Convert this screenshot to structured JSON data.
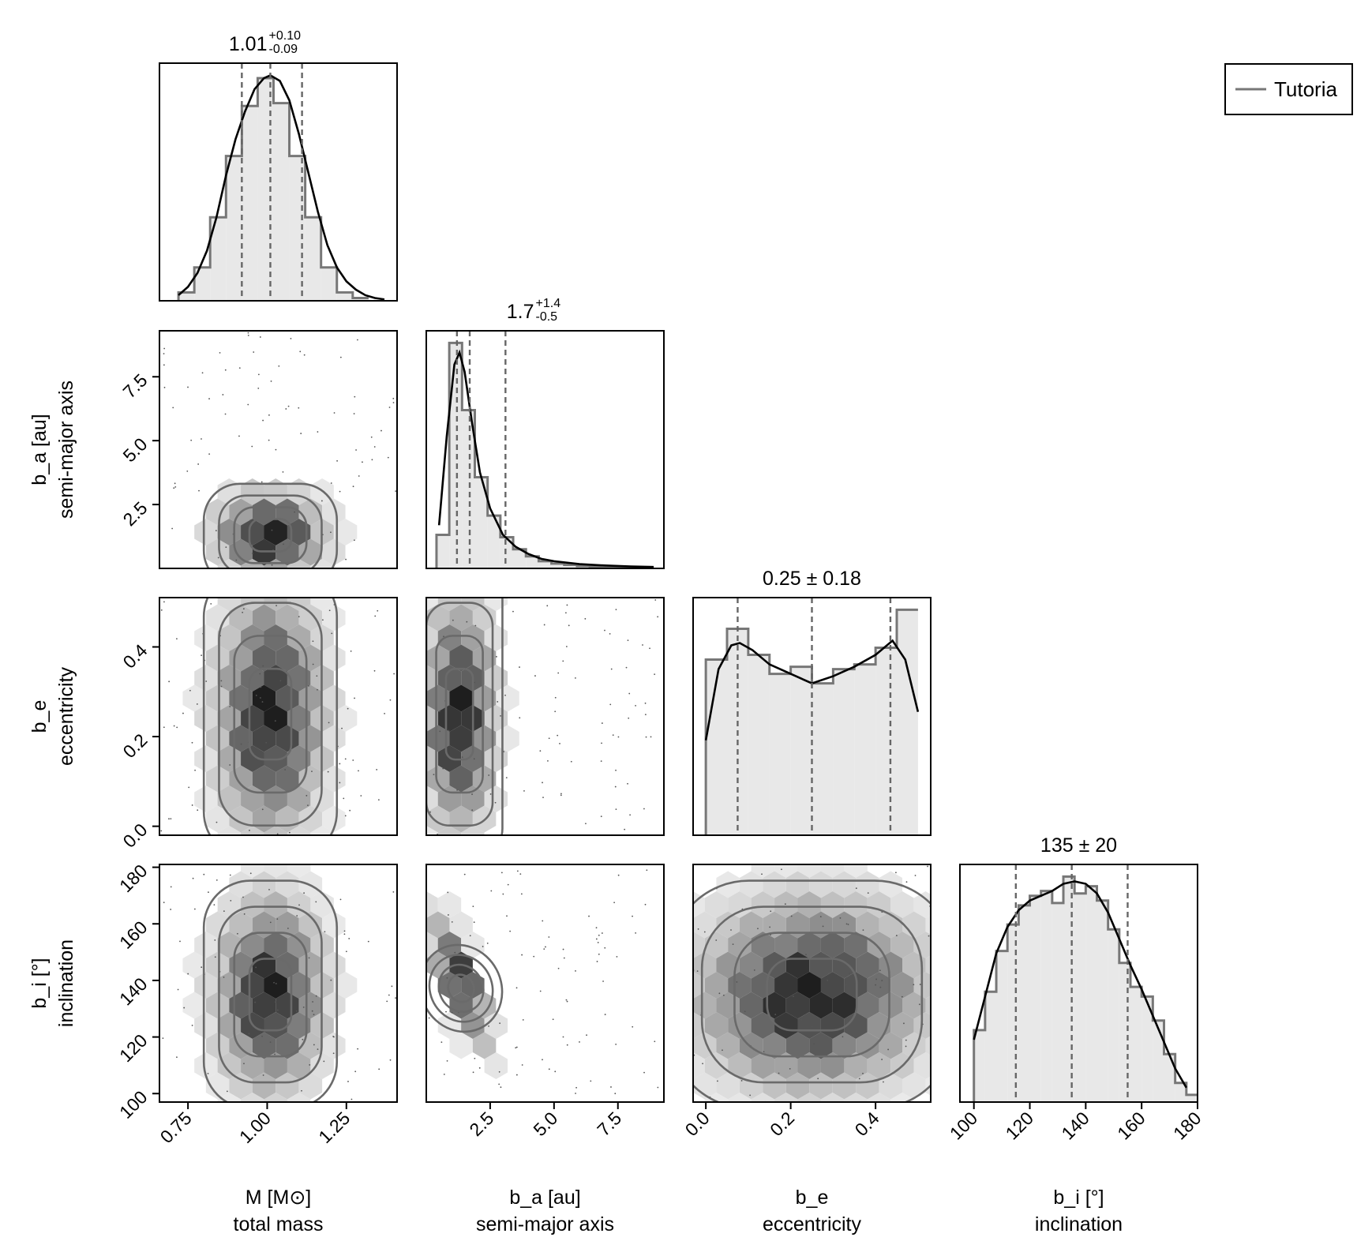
{
  "figure": {
    "type": "corner-plot"
  },
  "legend": {
    "label": "Tutoria",
    "placement": "top-right"
  },
  "colors": {
    "axis": "#000000",
    "hist_fill": "#e8e8e8",
    "hist_step": "#777777",
    "kde": "#000000",
    "quantile": "#666666",
    "contour": "#6a6a6a",
    "hexbin_dark": "#1e1e1e"
  },
  "chart_data": [
    {
      "type": "histogram",
      "id": "M",
      "row": 0,
      "col": 0,
      "param": "M",
      "label_line1": "M [M⊙]",
      "label_line2": "total mass",
      "title_main": "1.01",
      "title_sup": "+0.10",
      "title_sub": "-0.09",
      "xlim": [
        0.66,
        1.41
      ],
      "bin_edges": [
        0.72,
        0.77,
        0.82,
        0.87,
        0.92,
        0.97,
        1.02,
        1.07,
        1.12,
        1.17,
        1.22,
        1.27,
        1.32
      ],
      "counts": [
        3,
        12,
        30,
        52,
        70,
        80,
        71,
        52,
        30,
        12,
        3,
        1
      ],
      "kde_x": [
        0.72,
        0.75,
        0.78,
        0.81,
        0.84,
        0.87,
        0.9,
        0.93,
        0.96,
        0.99,
        1.01,
        1.04,
        1.07,
        1.1,
        1.13,
        1.16,
        1.19,
        1.22,
        1.25,
        1.28,
        1.31,
        1.34,
        1.37
      ],
      "kde_y": [
        2,
        5,
        10,
        18,
        30,
        45,
        58,
        68,
        76,
        80,
        81,
        79,
        72,
        60,
        46,
        32,
        20,
        12,
        7,
        4,
        2,
        1,
        0.5
      ],
      "quantiles": [
        0.92,
        1.01,
        1.11
      ]
    },
    {
      "type": "histogram",
      "id": "a",
      "row": 1,
      "col": 1,
      "param": "b_a",
      "label_line1": "b_a [au]",
      "label_line2": "semi-major axis",
      "title_main": "1.7",
      "title_sup": "+1.4",
      "title_sub": "-0.5",
      "xlim": [
        0.0,
        9.3
      ],
      "ticks": [
        2.5,
        5.0,
        7.5
      ],
      "tick_labels": [
        "2.5",
        "5.0",
        "7.5"
      ],
      "bin_edges": [
        0.4,
        0.9,
        1.4,
        1.9,
        2.4,
        2.9,
        3.4,
        3.9,
        4.4,
        4.9,
        5.4,
        5.9,
        6.4,
        6.9,
        7.4,
        7.9,
        8.4,
        8.9
      ],
      "counts": [
        14,
        94,
        66,
        38,
        22,
        13,
        8,
        5,
        3,
        2,
        1.5,
        1,
        0.8,
        0.6,
        0.5,
        0.4,
        0.3
      ],
      "kde_x": [
        0.5,
        0.8,
        1.1,
        1.3,
        1.5,
        1.8,
        2.1,
        2.5,
        3.0,
        3.5,
        4.0,
        4.5,
        5.0,
        6.0,
        7.0,
        8.0,
        8.9
      ],
      "kde_y": [
        18,
        55,
        85,
        90,
        82,
        60,
        40,
        25,
        14,
        9,
        6,
        4,
        3,
        1.8,
        1.2,
        0.8,
        0.6
      ],
      "quantiles": [
        1.2,
        1.7,
        3.1
      ]
    },
    {
      "type": "histogram",
      "id": "e",
      "row": 2,
      "col": 2,
      "param": "b_e",
      "label_line1": "b_e",
      "label_line2": "eccentricity",
      "title_main": "0.25 ± 0.18",
      "xlim": [
        -0.03,
        0.53
      ],
      "ticks": [
        0.0,
        0.2,
        0.4
      ],
      "tick_labels": [
        "0.0",
        "0.2",
        "0.4"
      ],
      "bin_edges": [
        0.0,
        0.05,
        0.1,
        0.15,
        0.2,
        0.25,
        0.3,
        0.35,
        0.4,
        0.45,
        0.5
      ],
      "counts": [
        74,
        87,
        76,
        68,
        71,
        64,
        70,
        72,
        79,
        95
      ],
      "kde_x": [
        0.0,
        0.03,
        0.06,
        0.08,
        0.11,
        0.15,
        0.2,
        0.25,
        0.3,
        0.35,
        0.4,
        0.44,
        0.47,
        0.5
      ],
      "kde_y": [
        40,
        70,
        80,
        81,
        78,
        72,
        68,
        64,
        67,
        71,
        76,
        82,
        74,
        52
      ],
      "quantiles": [
        0.075,
        0.25,
        0.435
      ]
    },
    {
      "type": "histogram",
      "id": "i",
      "row": 3,
      "col": 3,
      "param": "b_i",
      "label_line1": "b_i [°]",
      "label_line2": "inclination",
      "title_main": "135 ± 20",
      "xlim": [
        95,
        180
      ],
      "ticks": [
        100,
        120,
        140,
        160,
        180
      ],
      "tick_labels": [
        "100",
        "120",
        "140",
        "160",
        "180"
      ],
      "bin_edges": [
        100,
        104,
        108,
        112,
        116,
        120,
        124,
        128,
        132,
        136,
        140,
        144,
        148,
        152,
        156,
        160,
        164,
        168,
        172,
        176,
        180
      ],
      "counts": [
        30,
        46,
        63,
        74,
        82,
        86,
        88,
        83,
        94,
        87,
        90,
        84,
        72,
        58,
        48,
        44,
        34,
        20,
        8,
        3
      ],
      "kde_x": [
        100,
        104,
        108,
        112,
        116,
        120,
        124,
        128,
        132,
        136,
        140,
        144,
        148,
        152,
        156,
        160,
        164,
        168,
        172,
        176
      ],
      "kde_y": [
        26,
        44,
        62,
        73,
        80,
        84,
        86,
        88,
        91,
        92,
        91,
        87,
        79,
        68,
        57,
        47,
        36,
        25,
        14,
        6
      ],
      "quantiles": [
        115,
        135,
        155
      ]
    },
    {
      "type": "hexbin-contour",
      "row": 1,
      "col": 0,
      "xlim": [
        0.66,
        1.41
      ],
      "ylim": [
        0.0,
        9.3
      ],
      "xticks": [
        0.75,
        1.0,
        1.25
      ],
      "yticks": [
        2.5,
        5.0,
        7.5
      ],
      "ytick_labels": [
        "2.5",
        "5.0",
        "7.5"
      ],
      "ylabel_line1": "b_a [au]",
      "ylabel_line2": "semi-major axis",
      "mean": [
        1.01,
        1.3
      ],
      "sigma": [
        0.1,
        1.0
      ],
      "density_peak": [
        1.01,
        1.2
      ],
      "contour_levels": [
        [
          0.13,
          0.55,
          0.6
        ],
        [
          0.22,
          1.0,
          1.1
        ],
        [
          0.3,
          1.6,
          2.4
        ],
        [
          0.38,
          2.6,
          4.0
        ]
      ]
    },
    {
      "type": "hexbin-contour",
      "row": 2,
      "col": 0,
      "xlim": [
        0.66,
        1.41
      ],
      "ylim": [
        -0.02,
        0.51
      ],
      "xticks": [
        0.75,
        1.0,
        1.25
      ],
      "yticks": [
        0.0,
        0.2,
        0.4
      ],
      "ytick_labels": [
        "0.0",
        "0.2",
        "0.4"
      ],
      "ylabel_line1": "b_e",
      "ylabel_line2": "eccentricity",
      "mean": [
        1.01,
        0.25
      ],
      "sigma": [
        0.1,
        0.16
      ],
      "contour_levels": [
        [
          0.2,
          0.23,
          0.25
        ],
        [
          0.23,
          0.25,
          0.26
        ],
        [
          0.29,
          0.27,
          0.28
        ]
      ]
    },
    {
      "type": "hexbin-contour",
      "row": 2,
      "col": 1,
      "xlim": [
        0.0,
        9.3
      ],
      "ylim": [
        -0.02,
        0.51
      ],
      "xticks": [
        2.5,
        5.0,
        7.5
      ],
      "yticks": [
        0.0,
        0.2,
        0.4
      ],
      "mean": [
        1.3,
        0.25
      ],
      "sigma": [
        0.8,
        0.16
      ],
      "contour_levels": [
        [
          0.5,
          0.24,
          0.25
        ],
        [
          0.8,
          0.25,
          0.26
        ],
        [
          1.4,
          0.26,
          0.27
        ]
      ]
    },
    {
      "type": "hexbin-contour",
      "row": 3,
      "col": 0,
      "xlim": [
        0.66,
        1.41
      ],
      "ylim": [
        97,
        181
      ],
      "xticks": [
        0.75,
        1.0,
        1.25
      ],
      "yticks": [
        100,
        120,
        140,
        160,
        180
      ],
      "xtick_labels": [
        "0.75",
        "1.00",
        "1.25"
      ],
      "ytick_labels": [
        "100",
        "120",
        "140",
        "160",
        "180"
      ],
      "ylabel_line1": "b_i [°]",
      "ylabel_line2": "inclination",
      "mean": [
        1.01,
        135
      ],
      "sigma": [
        0.1,
        20
      ],
      "contour_levels": [
        [
          0.08,
          15,
          21
        ],
        [
          0.17,
          31,
          37
        ],
        [
          0.23,
          40,
          42
        ],
        [
          0.3,
          45,
          46
        ]
      ]
    },
    {
      "type": "hexbin-contour",
      "row": 3,
      "col": 1,
      "xlim": [
        0.0,
        9.3
      ],
      "ylim": [
        97,
        181
      ],
      "xticks": [
        2.5,
        5.0,
        7.5
      ],
      "yticks": [
        100,
        120,
        140,
        160,
        180
      ],
      "xtick_labels": [
        "2.5",
        "5.0",
        "7.5"
      ],
      "mean": [
        1.3,
        140
      ],
      "sigma": [
        0.9,
        18
      ],
      "correlation": "negative",
      "contour_levels": [
        [
          0.5,
          12
        ],
        [
          0.9,
          22
        ],
        [
          1.3,
          30
        ]
      ]
    },
    {
      "type": "hexbin-contour",
      "row": 3,
      "col": 2,
      "xlim": [
        -0.03,
        0.53
      ],
      "ylim": [
        97,
        181
      ],
      "xticks": [
        0.0,
        0.2,
        0.4
      ],
      "yticks": [
        100,
        120,
        140,
        160,
        180
      ],
      "xtick_labels": [
        "0.0",
        "0.2",
        "0.4"
      ],
      "mean": [
        0.25,
        135
      ],
      "sigma": [
        0.16,
        20
      ],
      "contour_levels": [
        [
          0.07,
          140
        ],
        [
          0.3,
          125
        ],
        [
          0.44,
          118
        ]
      ]
    }
  ]
}
